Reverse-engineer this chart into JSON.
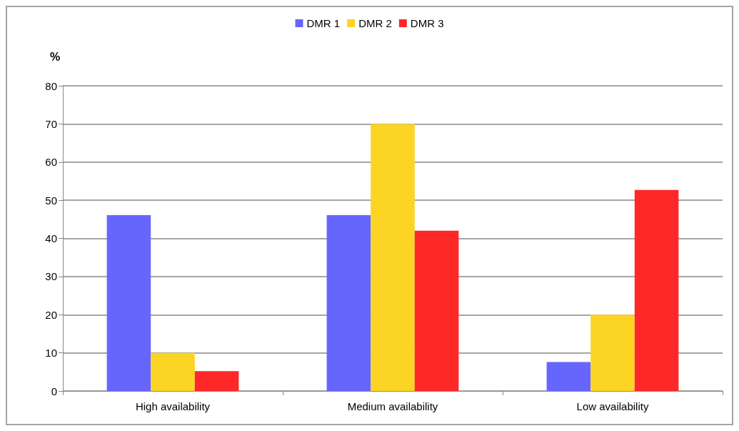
{
  "chart_data": {
    "type": "bar",
    "ylabel": "%",
    "categories": [
      "High availability",
      "Medium availability",
      "Low availability"
    ],
    "series": [
      {
        "name": "DMR 1",
        "color": "#6666ff",
        "values": [
          46.1,
          46.1,
          7.6
        ]
      },
      {
        "name": "DMR 2",
        "color": "#fcd424",
        "values": [
          10,
          70,
          20
        ]
      },
      {
        "name": "DMR 3",
        "color": "#ff2828",
        "values": [
          5.2,
          42,
          52.7
        ]
      }
    ],
    "ylim": [
      0,
      80
    ],
    "yticks": [
      0,
      10,
      20,
      30,
      40,
      50,
      60,
      70,
      80
    ],
    "grid": "y",
    "legend": "top"
  }
}
